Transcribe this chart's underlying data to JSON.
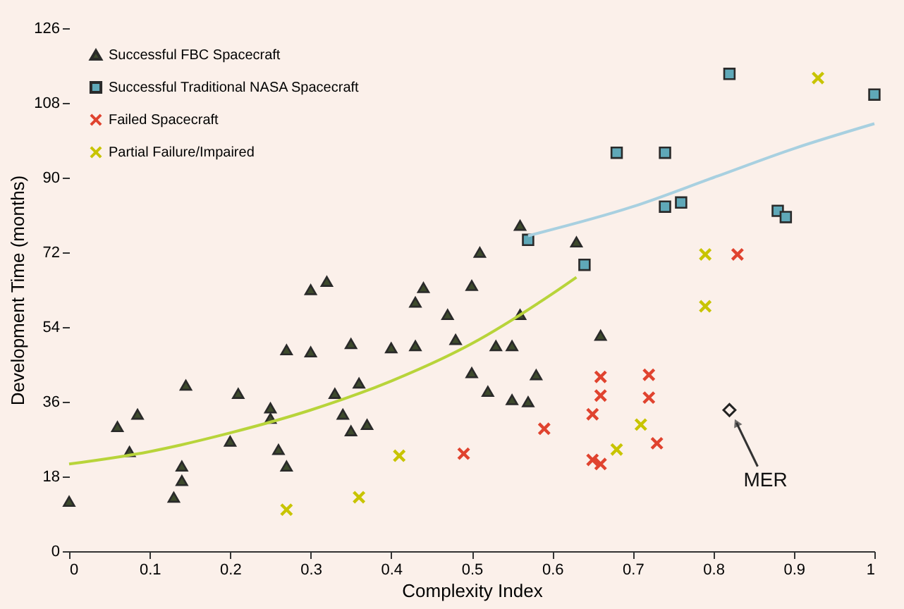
{
  "chart_data": {
    "type": "scatter",
    "xlabel": "Complexity Index",
    "ylabel": "Development Time (months)",
    "xlim": [
      0,
      1
    ],
    "xticks": [
      0,
      0.1,
      0.2,
      0.3,
      0.4,
      0.5,
      0.6,
      0.7,
      0.8,
      0.9,
      1
    ],
    "ylim": [
      0,
      126
    ],
    "yticks": [
      0,
      18,
      36,
      54,
      72,
      90,
      108,
      126
    ],
    "legend": "top left",
    "grid": false,
    "annotations": [
      {
        "text": "MER",
        "x": 0.82,
        "y": 34
      }
    ],
    "series": [
      {
        "name": "Successful FBC Spacecraft",
        "color": "#3d4a2c",
        "marker": "triangle",
        "x": [
          0,
          0.06,
          0.085,
          0.075,
          0.13,
          0.14,
          0.14,
          0.145,
          0.2,
          0.21,
          0.25,
          0.25,
          0.26,
          0.27,
          0.27,
          0.3,
          0.3,
          0.32,
          0.33,
          0.34,
          0.35,
          0.35,
          0.36,
          0.37,
          0.4,
          0.43,
          0.43,
          0.44,
          0.47,
          0.48,
          0.5,
          0.51,
          0.5,
          0.52,
          0.53,
          0.55,
          0.55,
          0.56,
          0.56,
          0.57,
          0.58,
          0.63,
          0.66
        ],
        "values": [
          12,
          30,
          33,
          24,
          13,
          17,
          20.5,
          40,
          26.5,
          38,
          34.5,
          32,
          24.5,
          20.5,
          48.5,
          48,
          63,
          65,
          38,
          33,
          50,
          29,
          40.5,
          30.5,
          49,
          49.5,
          60,
          63.5,
          57,
          51,
          64,
          72,
          43,
          38.5,
          49.5,
          49.5,
          36.5,
          78.5,
          57,
          36,
          42.5,
          74.5,
          52
        ]
      },
      {
        "name": "Successful Traditional NASA Spacecraft",
        "color": "#5fa8b8",
        "marker": "square",
        "x": [
          0.57,
          0.64,
          0.68,
          0.74,
          0.74,
          0.76,
          0.82,
          0.88,
          0.89,
          1
        ],
        "values": [
          75,
          69,
          96,
          96,
          83,
          84,
          115,
          82,
          80.5,
          110
        ]
      },
      {
        "name": "Failed Spacecraft",
        "color": "#e0432f",
        "marker": "cross",
        "x": [
          0.49,
          0.59,
          0.65,
          0.66,
          0.66,
          0.65,
          0.66,
          0.72,
          0.72,
          0.73,
          0.83
        ],
        "values": [
          23.5,
          29.5,
          33,
          37.5,
          42,
          22,
          21,
          42.5,
          37,
          26,
          71.5
        ]
      },
      {
        "name": "Partial Failure/Impaired",
        "color": "#c8c400",
        "marker": "cross",
        "x": [
          0.27,
          0.36,
          0.41,
          0.68,
          0.71,
          0.79,
          0.79,
          0.93
        ],
        "values": [
          10,
          13,
          23,
          24.5,
          30.5,
          71.5,
          59,
          114
        ]
      },
      {
        "color": "#222222",
        "marker": "diamond",
        "x": [
          0.82
        ],
        "values": [
          34
        ]
      },
      {
        "type": "line",
        "color": "#b8d43a",
        "x": [
          0,
          0.1,
          0.2,
          0.3,
          0.4,
          0.5,
          0.6,
          0.63
        ],
        "values": [
          21,
          24,
          28.5,
          34,
          41,
          50,
          62,
          66
        ]
      },
      {
        "type": "line",
        "color": "#a8d0e0",
        "x": [
          0.57,
          0.7,
          0.8,
          0.9,
          1
        ],
        "values": [
          76,
          83,
          90,
          97,
          103
        ]
      }
    ]
  }
}
